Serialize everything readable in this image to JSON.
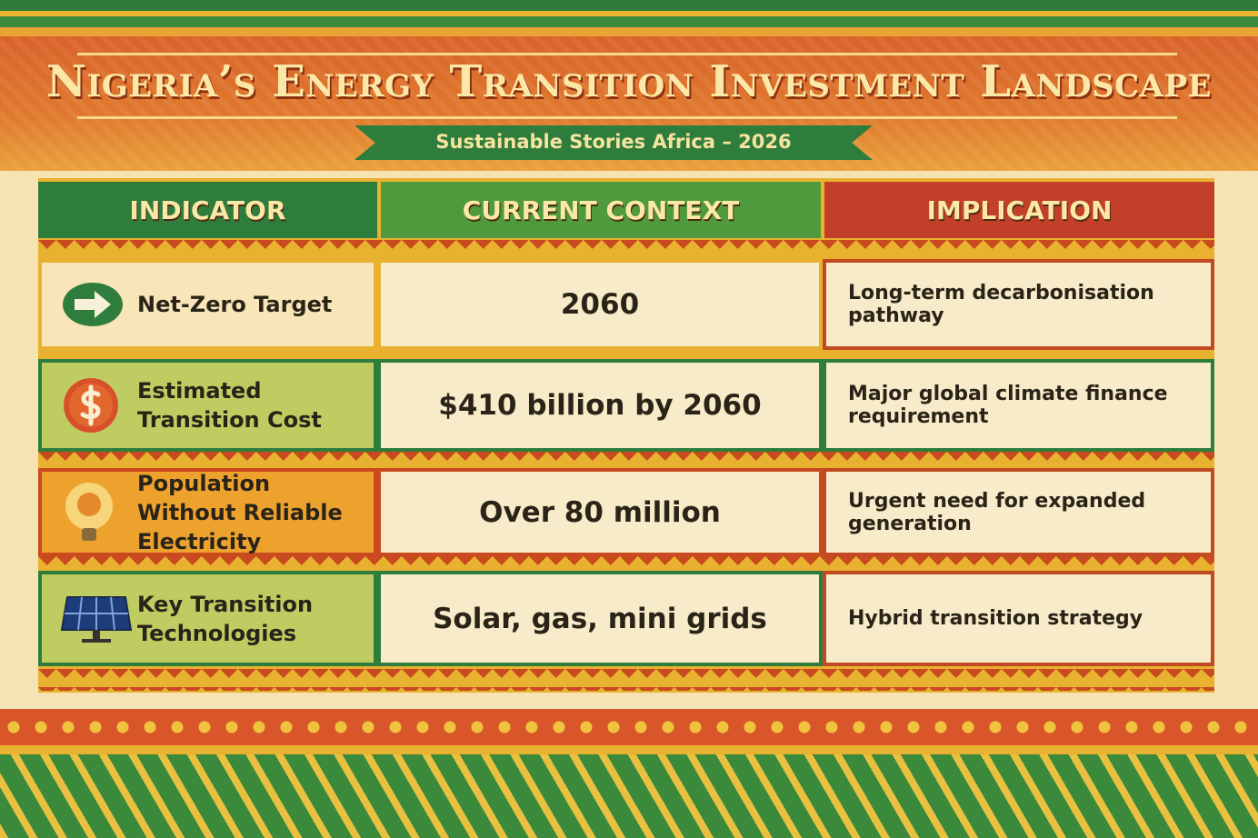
{
  "header": {
    "title": "Nigeria’s Energy Transition Investment Landscape",
    "subtitle": "Sustainable Stories Africa – 2026"
  },
  "table": {
    "columns": [
      "INDICATOR",
      "CURRENT CONTEXT",
      "IMPLICATION"
    ],
    "rows": [
      [
        "Net-Zero Target",
        "2060",
        "Long-term decarbonisation pathway"
      ],
      [
        "Estimated Transition Cost",
        "$410 billion by 2060",
        "Major global climate finance requirement"
      ],
      [
        "Population Without Reliable Electricity",
        "Over 80 million",
        "Urgent need for expanded generation"
      ],
      [
        "Key Transition Technologies",
        "Solar, gas, mini grids",
        "Hybrid transition strategy"
      ]
    ]
  }
}
